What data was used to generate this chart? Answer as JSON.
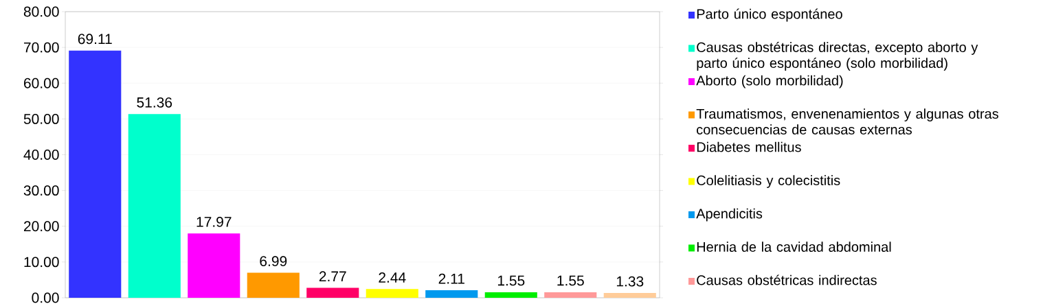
{
  "chart_data": {
    "type": "bar",
    "categories": [
      null,
      null,
      null,
      null,
      null,
      null,
      null,
      null,
      null,
      null
    ],
    "series": [
      {
        "name": "Parto único espontáneo",
        "color": "#3333ff",
        "values": [
          69.11,
          null,
          null,
          null,
          null,
          null,
          null,
          null,
          null,
          null
        ]
      },
      {
        "name": "Causas obstétricas directas, excepto aborto y parto único espontáneo (solo morbilidad)",
        "color": "#00ffcc",
        "values": [
          null,
          51.36,
          null,
          null,
          null,
          null,
          null,
          null,
          null,
          null
        ]
      },
      {
        "name": "Aborto (solo morbilidad)",
        "color": "#ff00ff",
        "values": [
          null,
          null,
          17.97,
          null,
          null,
          null,
          null,
          null,
          null,
          null
        ]
      },
      {
        "name": "Traumatismos, envenenamientos y algunas otras consecuencias de causas externas",
        "color": "#ff9900",
        "values": [
          null,
          null,
          null,
          6.99,
          null,
          null,
          null,
          null,
          null,
          null
        ]
      },
      {
        "name": "Diabetes mellitus",
        "color": "#ff0066",
        "values": [
          null,
          null,
          null,
          null,
          2.77,
          null,
          null,
          null,
          null,
          null
        ]
      },
      {
        "name": "Colelitiasis y colecistitis",
        "color": "#ffff00",
        "values": [
          null,
          null,
          null,
          null,
          null,
          2.44,
          null,
          null,
          null,
          null
        ]
      },
      {
        "name": "Apendicitis",
        "color": "#0099ee",
        "values": [
          null,
          null,
          null,
          null,
          null,
          null,
          2.11,
          null,
          null,
          null
        ]
      },
      {
        "name": "Hernia de la cavidad abdominal",
        "color": "#00ee00",
        "values": [
          null,
          null,
          null,
          null,
          null,
          null,
          null,
          1.55,
          null,
          null
        ]
      },
      {
        "name": "Causas obstétricas indirectas",
        "color": "#ff9999",
        "values": [
          null,
          null,
          null,
          null,
          null,
          null,
          null,
          null,
          1.55,
          null
        ]
      },
      {
        "color": "#ffcc99",
        "values": [
          null,
          null,
          null,
          null,
          null,
          null,
          null,
          null,
          null,
          1.33
        ]
      }
    ],
    "ylim": [
      0,
      80
    ],
    "yticks": [
      {
        "value": 0,
        "label": "0.00"
      },
      {
        "value": 10,
        "label": "10.00"
      },
      {
        "value": 20,
        "label": "20.00"
      },
      {
        "value": 30,
        "label": "30.00"
      },
      {
        "value": 40,
        "label": "40.00"
      },
      {
        "value": 50,
        "label": "50.00"
      },
      {
        "value": 60,
        "label": "60.00"
      },
      {
        "value": 70,
        "label": "70.00"
      },
      {
        "value": 80,
        "label": "80.00"
      }
    ],
    "grid": "y",
    "data_labels": true,
    "legend": "right"
  }
}
